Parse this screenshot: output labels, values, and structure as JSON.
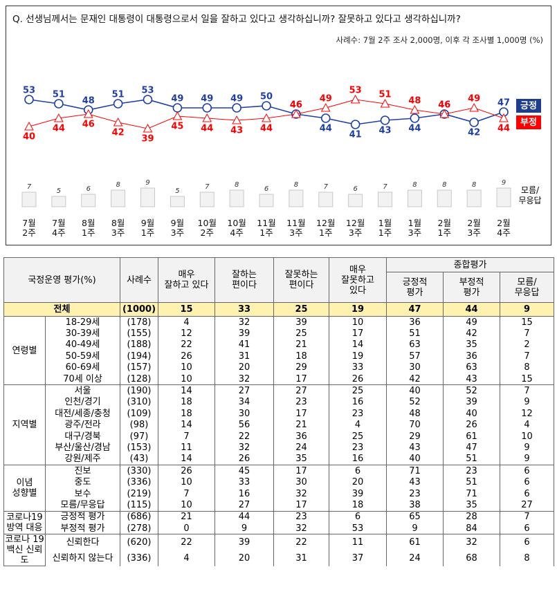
{
  "chart_data": {
    "type": "line",
    "title": "Q. 선생님께서는 문재인 대통령이 대통령으로서 일을 잘하고 있다고 생각하십니까? 잘못하고 있다고 생각하십니까?",
    "subtitle": "사례수: 7월 2주 조사 2,000명, 이후 각 조사별 1,000명 (%)",
    "categories": [
      "7월\n2주",
      "7월\n4주",
      "8월\n1주",
      "8월\n3주",
      "9월\n1주",
      "9월\n3주",
      "10월\n2주",
      "10월\n4주",
      "11월\n1주",
      "11월\n3주",
      "12월\n1주",
      "12월\n3주",
      "1월\n1주",
      "1월\n3주",
      "2월\n1주",
      "2월\n3주",
      "2월\n4주"
    ],
    "series": [
      {
        "name": "긍정",
        "color": "#1f3fa8",
        "values": [
          53,
          51,
          48,
          51,
          53,
          49,
          49,
          49,
          50,
          46,
          44,
          41,
          43,
          44,
          46,
          42,
          47
        ]
      },
      {
        "name": "부정",
        "color": "#ff0000",
        "values": [
          40,
          44,
          46,
          42,
          39,
          45,
          44,
          43,
          44,
          46,
          49,
          53,
          51,
          48,
          46,
          49,
          44
        ]
      },
      {
        "name": "모름/\n무응답",
        "type": "bar",
        "color": "#f2f2f2",
        "values": [
          7,
          5,
          6,
          8,
          9,
          5,
          7,
          8,
          6,
          8,
          7,
          6,
          7,
          8,
          8,
          8,
          9
        ]
      }
    ]
  },
  "table": {
    "columns": [
      "국정운영 평가(%)",
      "사례수",
      "매우\n잘하고 있다",
      "잘하는\n편이다",
      "잘못하는\n편이다",
      "매우\n잘못하고\n있다"
    ],
    "group_header": "종합평가",
    "sub_columns": [
      "긍정적\n평가",
      "부정적\n평가",
      "모름/\n무응답"
    ],
    "total": {
      "label": "전체",
      "n": "(1000)",
      "values": [
        15,
        33,
        25,
        19,
        47,
        44,
        9
      ]
    },
    "groups": [
      {
        "label": "연령별",
        "rows": [
          {
            "label": "18-29세",
            "n": "(178)",
            "values": [
              4,
              32,
              39,
              10,
              36,
              49,
              15
            ]
          },
          {
            "label": "30-39세",
            "n": "(155)",
            "values": [
              12,
              39,
              25,
              17,
              51,
              42,
              7
            ]
          },
          {
            "label": "40-49세",
            "n": "(188)",
            "values": [
              22,
              41,
              21,
              14,
              63,
              35,
              2
            ]
          },
          {
            "label": "50-59세",
            "n": "(194)",
            "values": [
              26,
              31,
              18,
              19,
              57,
              36,
              7
            ]
          },
          {
            "label": "60-69세",
            "n": "(157)",
            "values": [
              10,
              20,
              29,
              33,
              30,
              63,
              8
            ]
          },
          {
            "label": "70세 이상",
            "n": "(128)",
            "values": [
              10,
              32,
              17,
              26,
              42,
              43,
              15
            ]
          }
        ]
      },
      {
        "label": "지역별",
        "rows": [
          {
            "label": "서울",
            "n": "(190)",
            "values": [
              14,
              27,
              27,
              25,
              40,
              52,
              7
            ]
          },
          {
            "label": "인천/경기",
            "n": "(310)",
            "values": [
              18,
              34,
              23,
              16,
              52,
              39,
              9
            ]
          },
          {
            "label": "대전/세종/충청",
            "n": "(109)",
            "values": [
              18,
              30,
              17,
              23,
              48,
              40,
              12
            ]
          },
          {
            "label": "광주/전라",
            "n": "(98)",
            "values": [
              14,
              56,
              21,
              4,
              70,
              26,
              4
            ]
          },
          {
            "label": "대구/경북",
            "n": "(97)",
            "values": [
              7,
              22,
              36,
              25,
              29,
              61,
              10
            ]
          },
          {
            "label": "부산/울산/경남",
            "n": "(153)",
            "values": [
              11,
              32,
              24,
              23,
              43,
              47,
              9
            ]
          },
          {
            "label": "강원/제주",
            "n": "(43)",
            "values": [
              14,
              26,
              35,
              16,
              40,
              51,
              9
            ]
          }
        ]
      },
      {
        "label": "이념\n성향별",
        "rows": [
          {
            "label": "진보",
            "n": "(330)",
            "values": [
              26,
              45,
              17,
              6,
              71,
              23,
              6
            ]
          },
          {
            "label": "중도",
            "n": "(336)",
            "values": [
              10,
              33,
              30,
              20,
              43,
              51,
              6
            ]
          },
          {
            "label": "보수",
            "n": "(219)",
            "values": [
              7,
              16,
              32,
              39,
              23,
              71,
              6
            ]
          },
          {
            "label": "모름/무응답",
            "n": "(115)",
            "values": [
              10,
              27,
              17,
              18,
              38,
              35,
              27
            ]
          }
        ]
      },
      {
        "label": "코로나19\n방역 대응",
        "rows": [
          {
            "label": "긍정적 평가",
            "n": "(686)",
            "values": [
              21,
              44,
              23,
              6,
              65,
              28,
              7
            ]
          },
          {
            "label": "부정적 평가",
            "n": "(278)",
            "values": [
              0,
              9,
              32,
              53,
              9,
              84,
              6
            ]
          }
        ]
      },
      {
        "label": "코로나 19\n백신 신뢰도",
        "rows": [
          {
            "label": "신뢰한다",
            "n": "(620)",
            "values": [
              22,
              39,
              22,
              11,
              61,
              32,
              6
            ]
          },
          {
            "label": "신뢰하지 않는다",
            "n": "(336)",
            "values": [
              4,
              20,
              31,
              37,
              24,
              68,
              8
            ]
          }
        ]
      }
    ]
  }
}
